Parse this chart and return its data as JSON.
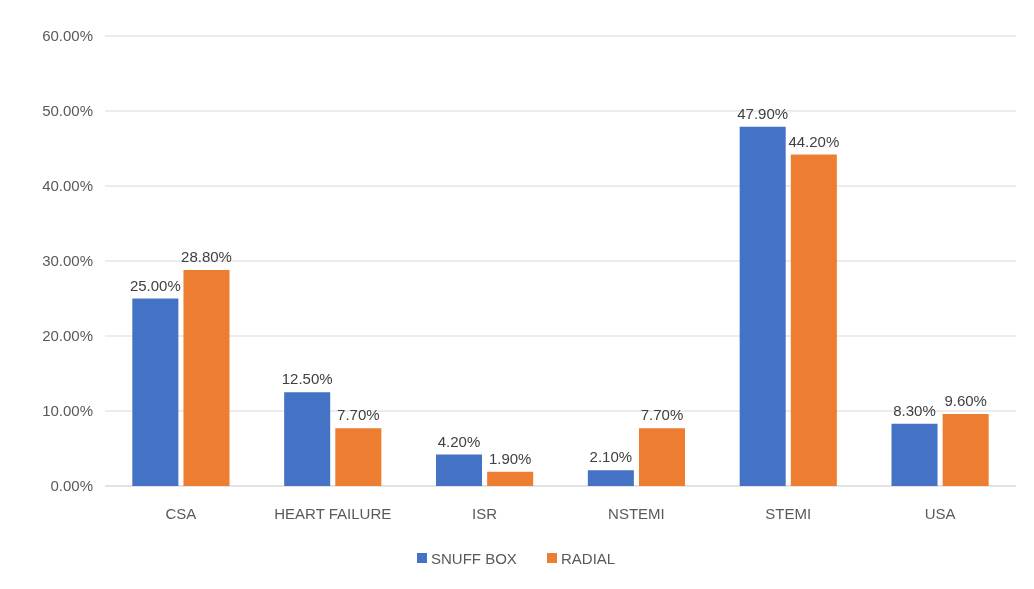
{
  "chart_data": {
    "type": "bar",
    "categories": [
      "CSA",
      "HEART FAILURE",
      "ISR",
      "NSTEMI",
      "STEMI",
      "USA"
    ],
    "series": [
      {
        "name": "SNUFF BOX",
        "color": "#4472c4",
        "values": [
          25.0,
          12.5,
          4.2,
          2.1,
          47.9,
          8.3
        ],
        "value_labels": [
          "25.00%",
          "12.50%",
          "4.20%",
          "2.10%",
          "47.90%",
          "8.30%"
        ]
      },
      {
        "name": "RADIAL",
        "color": "#ed7d31",
        "values": [
          28.8,
          7.7,
          1.9,
          7.7,
          44.2,
          9.6
        ],
        "value_labels": [
          "28.80%",
          "7.70%",
          "1.90%",
          "7.70%",
          "44.20%",
          "9.60%"
        ]
      }
    ],
    "ylim": [
      0,
      60
    ],
    "yticks": [
      {
        "value": 0,
        "label": "0.00%"
      },
      {
        "value": 10,
        "label": "10.00%"
      },
      {
        "value": 20,
        "label": "20.00%"
      },
      {
        "value": 30,
        "label": "30.00%"
      },
      {
        "value": 40,
        "label": "40.00%"
      },
      {
        "value": 50,
        "label": "50.00%"
      },
      {
        "value": 60,
        "label": "60.00%"
      }
    ],
    "grid": "y",
    "legend": "bottom"
  }
}
